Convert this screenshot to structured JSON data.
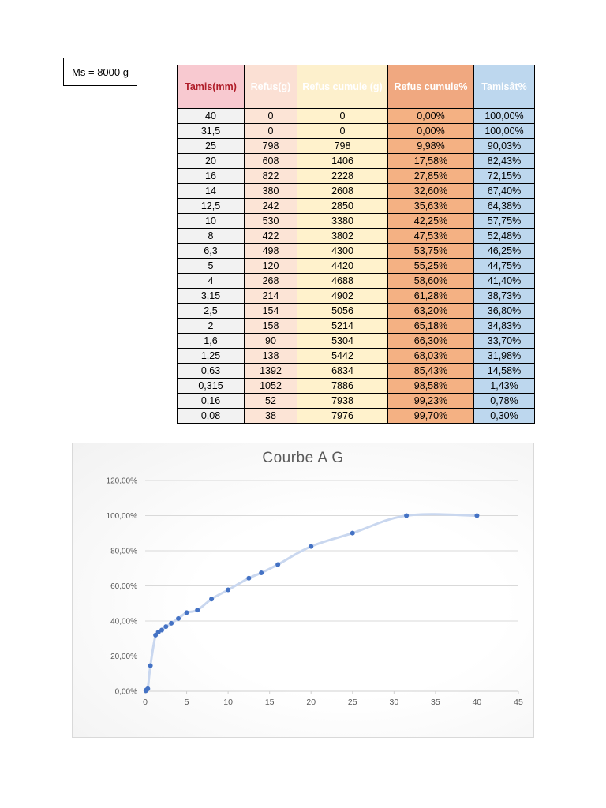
{
  "ms_label": "Ms = 8000 g",
  "table": {
    "headers": [
      "Tamis(mm)",
      "Refus(g)",
      "Refus cumule (g)",
      "Refus cumule%",
      "Tamisât%"
    ],
    "rows": [
      [
        "40",
        "0",
        "0",
        "0,00%",
        "100,00%"
      ],
      [
        "31,5",
        "0",
        "0",
        "0,00%",
        "100,00%"
      ],
      [
        "25",
        "798",
        "798",
        "9,98%",
        "90,03%"
      ],
      [
        "20",
        "608",
        "1406",
        "17,58%",
        "82,43%"
      ],
      [
        "16",
        "822",
        "2228",
        "27,85%",
        "72,15%"
      ],
      [
        "14",
        "380",
        "2608",
        "32,60%",
        "67,40%"
      ],
      [
        "12,5",
        "242",
        "2850",
        "35,63%",
        "64,38%"
      ],
      [
        "10",
        "530",
        "3380",
        "42,25%",
        "57,75%"
      ],
      [
        "8",
        "422",
        "3802",
        "47,53%",
        "52,48%"
      ],
      [
        "6,3",
        "498",
        "4300",
        "53,75%",
        "46,25%"
      ],
      [
        "5",
        "120",
        "4420",
        "55,25%",
        "44,75%"
      ],
      [
        "4",
        "268",
        "4688",
        "58,60%",
        "41,40%"
      ],
      [
        "3,15",
        "214",
        "4902",
        "61,28%",
        "38,73%"
      ],
      [
        "2,5",
        "154",
        "5056",
        "63,20%",
        "36,80%"
      ],
      [
        "2",
        "158",
        "5214",
        "65,18%",
        "34,83%"
      ],
      [
        "1,6",
        "90",
        "5304",
        "66,30%",
        "33,70%"
      ],
      [
        "1,25",
        "138",
        "5442",
        "68,03%",
        "31,98%"
      ],
      [
        "0,63",
        "1392",
        "6834",
        "85,43%",
        "14,58%"
      ],
      [
        "0,315",
        "1052",
        "7886",
        "98,58%",
        "1,43%"
      ],
      [
        "0,16",
        "52",
        "7938",
        "99,23%",
        "0,78%"
      ],
      [
        "0,08",
        "38",
        "7976",
        "99,70%",
        "0,30%"
      ]
    ]
  },
  "colors": {
    "header_tamis": "#f8c9d0",
    "header_refus": "#fbe0d4",
    "header_refus_cumule": "#fdf0cc",
    "header_refus_cumule_pct": "#f0a880",
    "header_tamisat": "#bdd7ee",
    "series_marker": "#4472c4",
    "series_line": "#c9d7ef"
  },
  "chart_data": {
    "type": "scatter",
    "title": "Courbe A G",
    "xlabel": "",
    "ylabel": "",
    "xlim": [
      0,
      45
    ],
    "ylim": [
      0,
      1.2
    ],
    "x_ticks": [
      "0",
      "5",
      "10",
      "15",
      "20",
      "25",
      "30",
      "35",
      "40",
      "45"
    ],
    "y_ticks": [
      "0,00%",
      "20,00%",
      "40,00%",
      "60,00%",
      "80,00%",
      "100,00%",
      "120,00%"
    ],
    "grid": true,
    "legend": "none",
    "smoothed_line": true,
    "series": [
      {
        "name": "Tamisât%",
        "x": [
          40,
          31.5,
          25,
          20,
          16,
          14,
          12.5,
          10,
          8,
          6.3,
          5,
          4,
          3.15,
          2.5,
          2,
          1.6,
          1.25,
          0.63,
          0.315,
          0.16,
          0.08
        ],
        "values": [
          1.0,
          1.0,
          0.9003,
          0.8243,
          0.7215,
          0.674,
          0.6438,
          0.5775,
          0.5248,
          0.4625,
          0.4475,
          0.414,
          0.3873,
          0.368,
          0.3483,
          0.337,
          0.3198,
          0.1458,
          0.0143,
          0.0078,
          0.003
        ]
      }
    ]
  }
}
